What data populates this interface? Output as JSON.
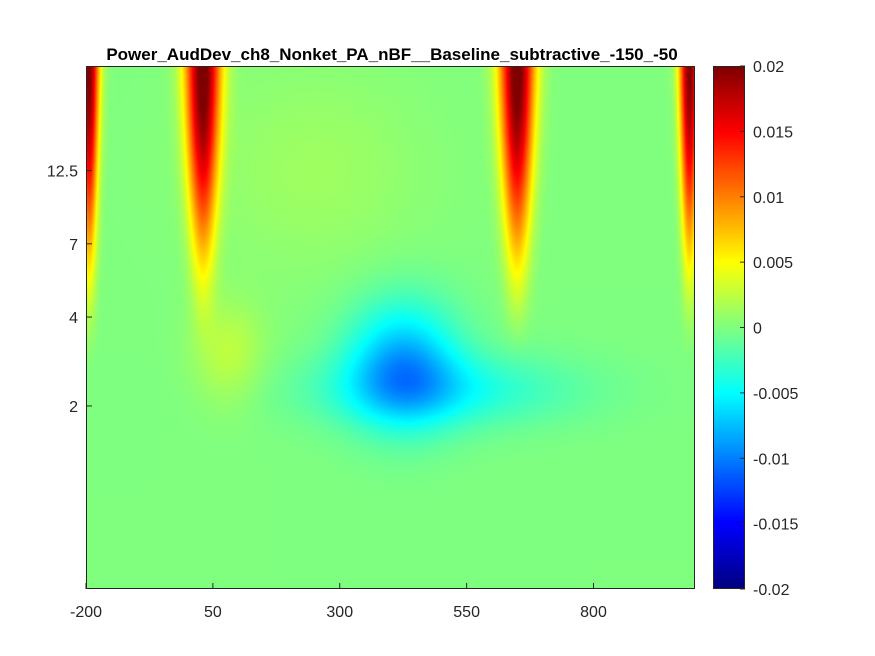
{
  "chart_data": {
    "type": "heatmap",
    "title": "Power_AudDev_ch8_Nonket_PA_nBF__Baseline_subtractive_-150_-50",
    "xlabel": "",
    "ylabel": "",
    "x_ticks": [
      -200,
      50,
      300,
      550,
      800
    ],
    "x_tick_labels": [
      "-200",
      "50",
      "300",
      "550",
      "800"
    ],
    "xlim": [
      -200,
      1000
    ],
    "y_tick_labels": [
      "12.5",
      "7",
      "4",
      "2"
    ],
    "colorbar": {
      "colormap": "jet",
      "clim": [
        -0.02,
        0.02
      ],
      "ticks": [
        0.02,
        0.015,
        0.01,
        0.005,
        0,
        -0.005,
        -0.01,
        -0.015,
        -0.02
      ],
      "tick_labels": [
        "0.02",
        "0.015",
        "0.01",
        "0.005",
        "0",
        "-0.005",
        "-0.01",
        "-0.015",
        "-0.02"
      ]
    },
    "background_value": 0.0,
    "features": [
      {
        "kind": "peak",
        "x": -195,
        "top": 1.0,
        "bottom": 0.4,
        "half_width": 20,
        "value": 0.02
      },
      {
        "kind": "peak",
        "x": 30,
        "top": 1.0,
        "bottom": 0.42,
        "half_width": 35,
        "value": 0.021
      },
      {
        "kind": "peak",
        "x": 650,
        "top": 1.0,
        "bottom": 0.42,
        "half_width": 35,
        "value": 0.021
      },
      {
        "kind": "peak",
        "x": 990,
        "top": 1.0,
        "bottom": 0.42,
        "half_width": 20,
        "value": 0.02
      },
      {
        "kind": "blob",
        "x": 425,
        "y": 0.43,
        "sx": 110,
        "sy": 0.12,
        "value": -0.008
      },
      {
        "kind": "blob",
        "x": 500,
        "y": 0.38,
        "sx": 260,
        "sy": 0.07,
        "value": -0.004
      },
      {
        "kind": "blob",
        "x": 80,
        "y": 0.45,
        "sx": 70,
        "sy": 0.1,
        "value": 0.0025
      },
      {
        "kind": "blob",
        "x": 250,
        "y": 0.8,
        "sx": 220,
        "sy": 0.2,
        "value": 0.0012
      }
    ]
  }
}
